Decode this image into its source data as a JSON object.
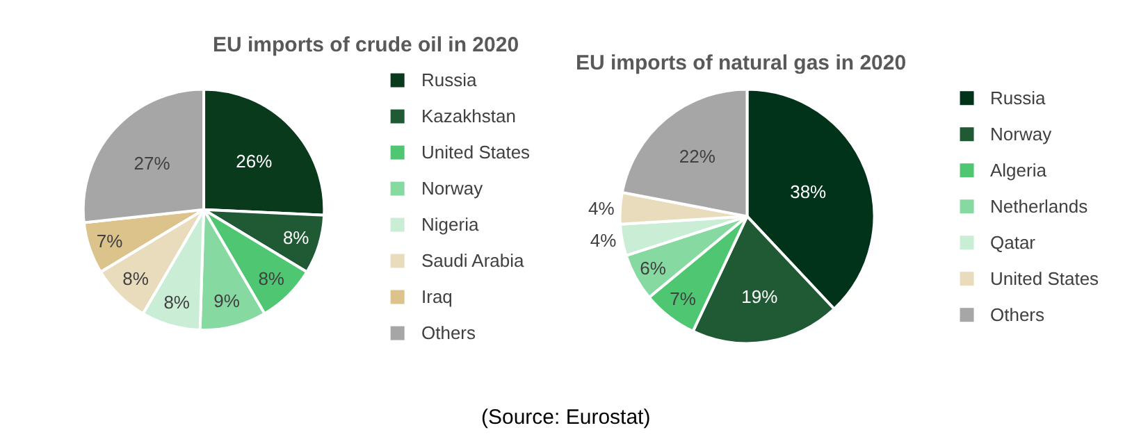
{
  "chart_data": [
    {
      "type": "pie",
      "title": "EU imports of crude oil in 2020",
      "categories": [
        "Russia",
        "Kazakhstan",
        "United States",
        "Norway",
        "Nigeria",
        "Saudi Arabia",
        "Iraq",
        "Others"
      ],
      "values": [
        26,
        8,
        8,
        9,
        8,
        8,
        7,
        27
      ],
      "value_labels": [
        "26%",
        "8%",
        "8%",
        "9%",
        "8%",
        "8%",
        "7%",
        "27%"
      ],
      "colors": [
        "#0a3a1c",
        "#1f5a34",
        "#4fc772",
        "#86d9a0",
        "#c9eed5",
        "#e9dcbd",
        "#dcc38b",
        "#a6a6a6"
      ],
      "legend": "right",
      "annotations": [
        "(Source: Eurostat)"
      ]
    },
    {
      "type": "pie",
      "title": "EU imports of natural gas in 2020",
      "categories": [
        "Russia",
        "Norway",
        "Algeria",
        "Netherlands",
        "Qatar",
        "United States",
        "Others"
      ],
      "values": [
        38,
        19,
        7,
        6,
        4,
        4,
        22
      ],
      "value_labels": [
        "38%",
        "19%",
        "7%",
        "6%",
        "4%",
        "4%",
        "22%"
      ],
      "colors": [
        "#00331a",
        "#1f5a34",
        "#4fc772",
        "#86d9a0",
        "#c9eed5",
        "#e9dcbd",
        "#a6a6a6"
      ],
      "legend": "right"
    }
  ]
}
